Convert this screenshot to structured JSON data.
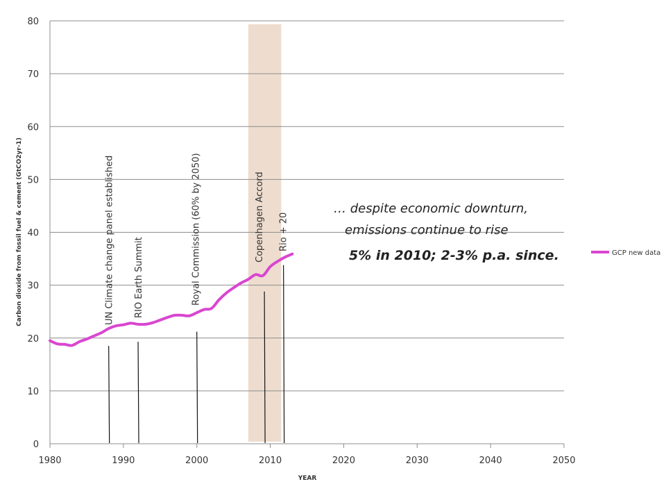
{
  "chart_data": {
    "type": "line",
    "xlabel": "YEAR",
    "ylabel": "Carbon dioxide from fossil fuel & cement (GtCO2yr-1)",
    "xlim": [
      1980,
      2050
    ],
    "ylim": [
      0,
      80
    ],
    "x_ticks": [
      1980,
      1990,
      2000,
      2010,
      2020,
      2030,
      2040,
      2050
    ],
    "y_ticks": [
      0,
      10,
      20,
      30,
      40,
      50,
      60,
      70,
      80
    ],
    "grid": "horizontal",
    "legend_position": "right",
    "series": [
      {
        "name": "GCP new data",
        "color": "#d946d0",
        "x": [
          1980,
          1981,
          1982,
          1983,
          1984,
          1985,
          1986,
          1987,
          1988,
          1989,
          1990,
          1991,
          1992,
          1993,
          1994,
          1995,
          1996,
          1997,
          1998,
          1999,
          2000,
          2001,
          2002,
          2003,
          2004,
          2005,
          2006,
          2007,
          2008,
          2009,
          2010,
          2011,
          2012,
          2013
        ],
        "values": [
          19.5,
          18.9,
          18.8,
          18.6,
          19.3,
          19.8,
          20.4,
          21.0,
          21.8,
          22.3,
          22.5,
          22.8,
          22.6,
          22.6,
          22.9,
          23.4,
          23.9,
          24.3,
          24.3,
          24.2,
          24.8,
          25.4,
          25.6,
          27.2,
          28.5,
          29.5,
          30.4,
          31.1,
          32.0,
          31.8,
          33.5,
          34.5,
          35.3,
          35.9
        ]
      }
    ],
    "highlight_band": {
      "x_start": 2007,
      "x_end": 2011.5,
      "color": "#eeddcf"
    },
    "events": [
      {
        "label": "UN Climate change panel established",
        "x": 1988,
        "line_top": 18.5
      },
      {
        "label": "RIO Earth Summit",
        "x": 1992,
        "line_top": 19.3
      },
      {
        "label": "Royal Commission (60% by 2050)",
        "x": 2000,
        "line_top": 21.2
      },
      {
        "label": "Copenhagen  Accord",
        "x": 2009.2,
        "line_top": 28.8
      },
      {
        "label": "Rio + 20",
        "x": 2011.8,
        "line_top": 33.8
      }
    ]
  },
  "annotation": {
    "line1": "… despite economic downturn,",
    "line2": "emissions continue to rise",
    "line3": "5% in 2010;   2-3% p.a. since."
  }
}
